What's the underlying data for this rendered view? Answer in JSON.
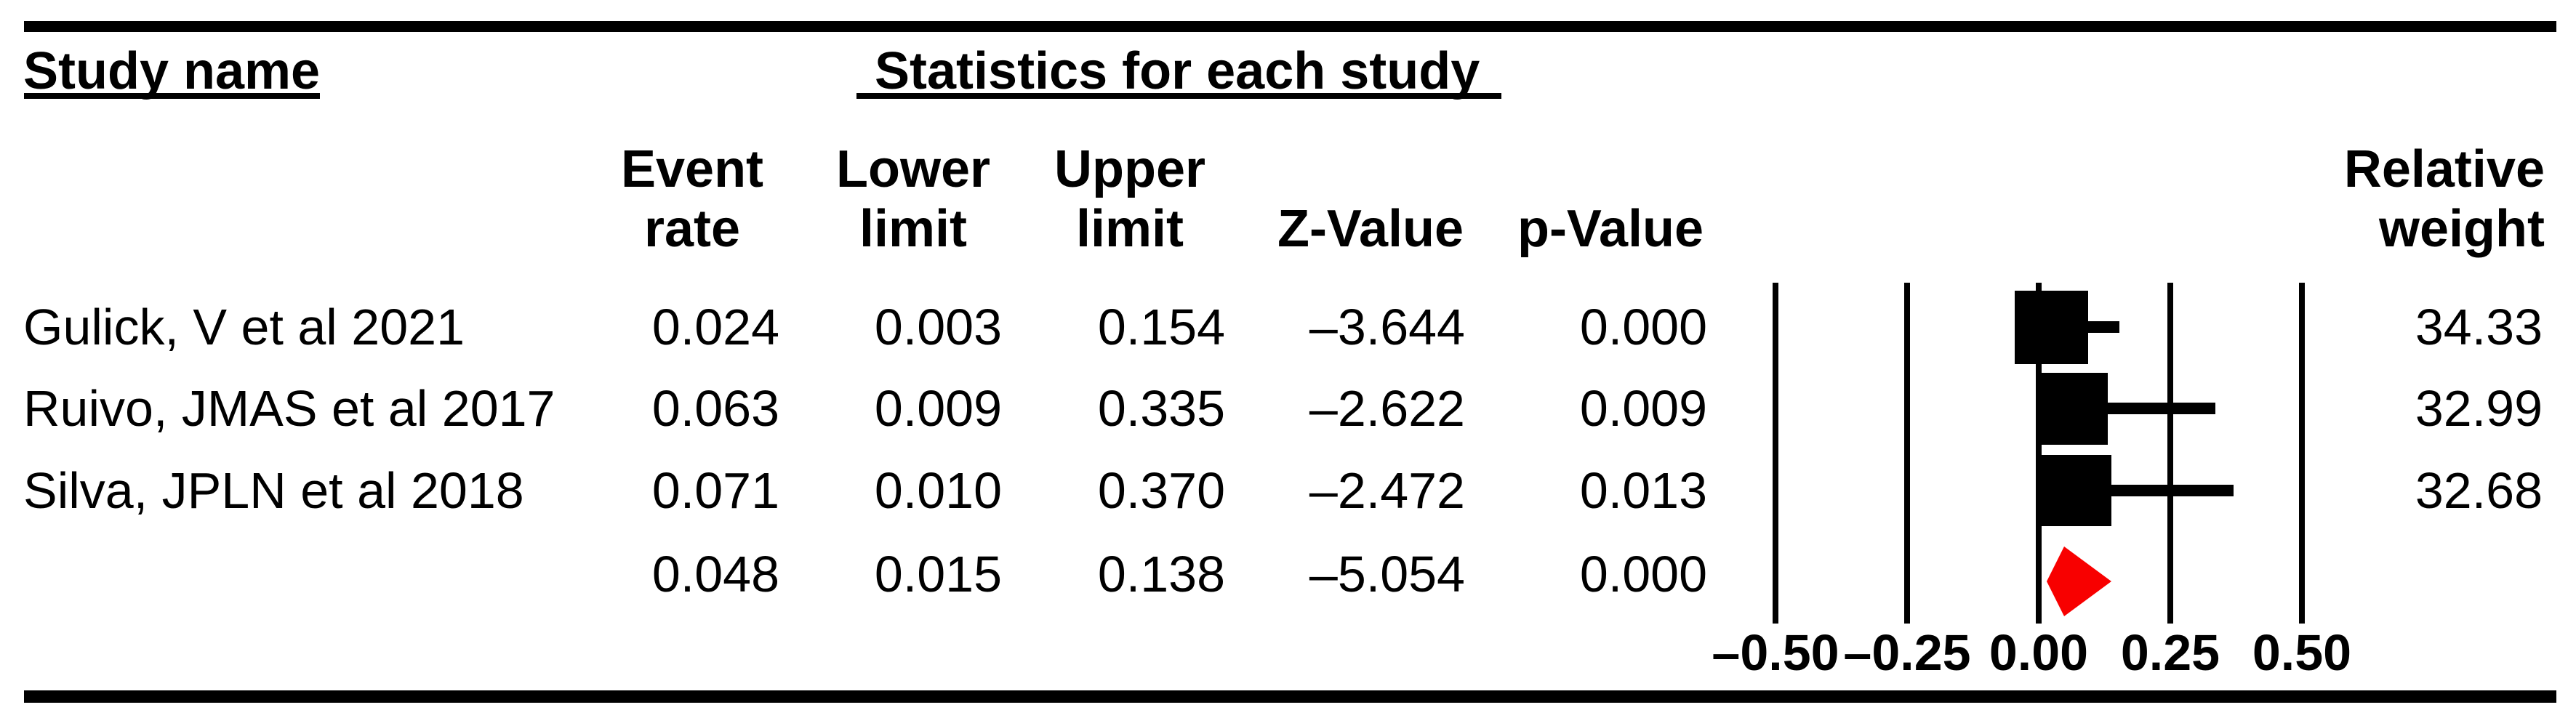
{
  "headers": {
    "study": "Study name",
    "stats_group": "Statistics for each study",
    "event_rate": [
      "Event",
      "rate"
    ],
    "lower_limit": [
      "Lower",
      "limit"
    ],
    "upper_limit": [
      "Upper",
      "limit"
    ],
    "z_value": "Z-Value",
    "p_value": "p-Value",
    "relative_weight": [
      "Relative",
      "weight"
    ]
  },
  "chart_data": {
    "type": "forest",
    "effect_measure": "Event rate",
    "studies": [
      {
        "name": "Gulick, V et al 2021",
        "event_rate": 0.024,
        "lower_limit": 0.003,
        "upper_limit": 0.154,
        "z_value": -3.644,
        "p_value": 0.0,
        "relative_weight": 34.33
      },
      {
        "name": "Ruivo, JMAS et al 2017",
        "event_rate": 0.063,
        "lower_limit": 0.009,
        "upper_limit": 0.335,
        "z_value": -2.622,
        "p_value": 0.009,
        "relative_weight": 32.99
      },
      {
        "name": "Silva, JPLN et al 2018",
        "event_rate": 0.071,
        "lower_limit": 0.01,
        "upper_limit": 0.37,
        "z_value": -2.472,
        "p_value": 0.013,
        "relative_weight": 32.68
      }
    ],
    "summary": {
      "event_rate": 0.048,
      "lower_limit": 0.015,
      "upper_limit": 0.138,
      "z_value": -5.054,
      "p_value": 0.0
    },
    "x_axis": {
      "ticks": [
        -0.5,
        -0.25,
        0,
        0.25,
        0.5
      ],
      "tick_labels": [
        "–0.50",
        "–0.25",
        "0.00",
        "0.25",
        "0.50"
      ],
      "range": [
        -0.625,
        0.625
      ],
      "grid": "vertical-lines"
    },
    "legend_position": "none",
    "marker_color": "#000000",
    "summary_color": "#f80000"
  }
}
